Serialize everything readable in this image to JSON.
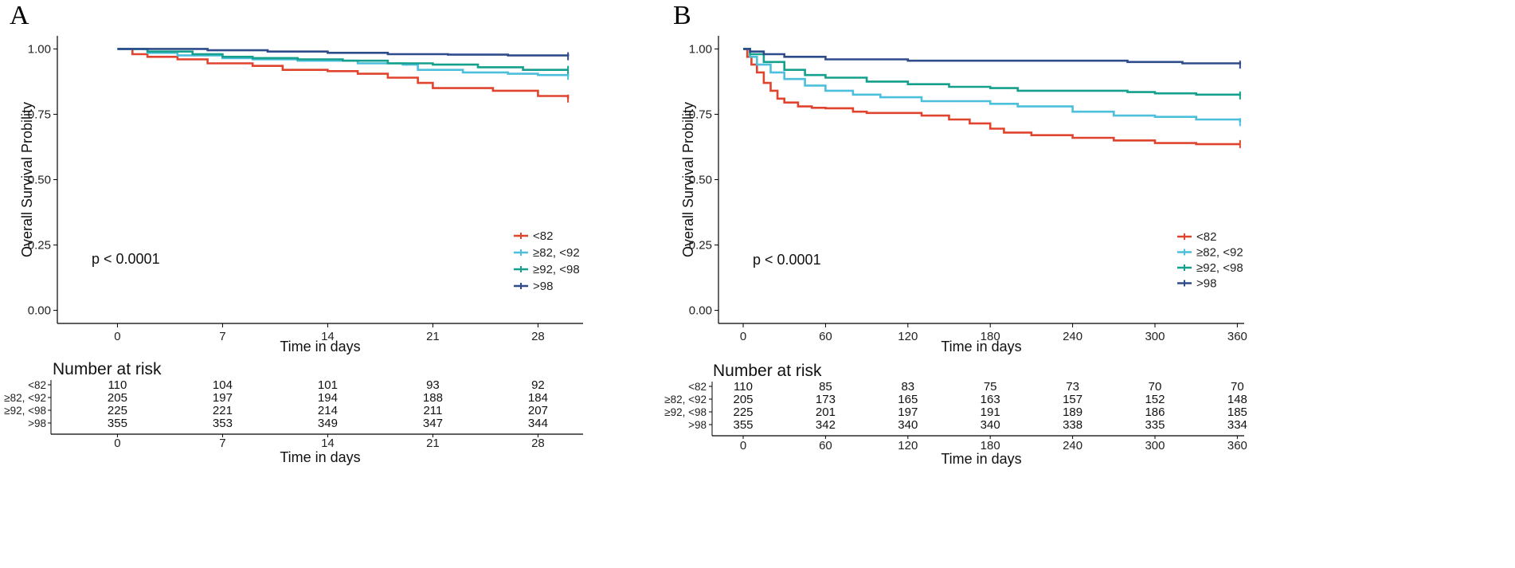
{
  "chart_data": [
    {
      "type": "line",
      "panel_label": "A",
      "title": "",
      "xlabel": "Time in days",
      "ylabel": "Overall Survival Probility",
      "xlim": [
        -4,
        31
      ],
      "ylim": [
        -0.05,
        1.05
      ],
      "x_ticks": [
        "0",
        "7",
        "14",
        "21",
        "28"
      ],
      "x_tick_values": [
        0,
        7,
        14,
        21,
        28
      ],
      "y_ticks": [
        "0.00",
        "0.25",
        "0.50",
        "0.75",
        "1.00"
      ],
      "y_tick_values": [
        0,
        0.25,
        0.5,
        0.75,
        1
      ],
      "grid": false,
      "p_value": "p < 0.0001",
      "legend_position": "right",
      "series": [
        {
          "name": "<82",
          "color": "#e0442e",
          "x": [
            0,
            1,
            2,
            4,
            6,
            9,
            11,
            14,
            16,
            18,
            20,
            21,
            25,
            28,
            30
          ],
          "y": [
            1.0,
            0.98,
            0.97,
            0.96,
            0.945,
            0.935,
            0.92,
            0.915,
            0.905,
            0.89,
            0.87,
            0.85,
            0.84,
            0.82,
            0.81
          ]
        },
        {
          "name": "≥82, <92",
          "color": "#4bbfdb",
          "x": [
            0,
            2,
            4,
            7,
            9,
            12,
            16,
            19,
            20,
            23,
            26,
            28,
            30
          ],
          "y": [
            1.0,
            0.985,
            0.975,
            0.965,
            0.96,
            0.955,
            0.945,
            0.94,
            0.92,
            0.91,
            0.905,
            0.9,
            0.897
          ]
        },
        {
          "name": "≥92, <98",
          "color": "#14a08c",
          "x": [
            0,
            2,
            5,
            7,
            9,
            12,
            15,
            18,
            21,
            24,
            27,
            30
          ],
          "y": [
            1.0,
            0.99,
            0.98,
            0.97,
            0.965,
            0.96,
            0.955,
            0.945,
            0.94,
            0.93,
            0.92,
            0.92
          ]
        },
        {
          "name": ">98",
          "color": "#2e4b8c",
          "x": [
            0,
            6,
            10,
            14,
            18,
            22,
            26,
            30
          ],
          "y": [
            1.0,
            0.995,
            0.99,
            0.985,
            0.98,
            0.978,
            0.975,
            0.972
          ]
        }
      ],
      "risk_table": {
        "title": "Number at risk",
        "xlabel": "Time in days",
        "rows": [
          {
            "label": "<82",
            "values": [
              "110",
              "104",
              "101",
              "93",
              "92"
            ]
          },
          {
            "label": "≥82, <92",
            "values": [
              "205",
              "197",
              "194",
              "188",
              "184"
            ]
          },
          {
            "label": "≥92, <98",
            "values": [
              "225",
              "221",
              "214",
              "211",
              "207"
            ]
          },
          {
            "label": ">98",
            "values": [
              "355",
              "353",
              "349",
              "347",
              "344"
            ]
          }
        ]
      }
    },
    {
      "type": "line",
      "panel_label": "B",
      "title": "",
      "xlabel": "Time in days",
      "ylabel": "Overall Survival Probility",
      "xlim": [
        -18,
        365
      ],
      "ylim": [
        -0.05,
        1.05
      ],
      "x_ticks": [
        "0",
        "60",
        "120",
        "180",
        "240",
        "300",
        "360"
      ],
      "x_tick_values": [
        0,
        60,
        120,
        180,
        240,
        300,
        360
      ],
      "y_ticks": [
        "0.00",
        "0.25",
        "0.50",
        "0.75",
        "1.00"
      ],
      "y_tick_values": [
        0,
        0.25,
        0.5,
        0.75,
        1
      ],
      "grid": false,
      "p_value": "p < 0.0001",
      "legend_position": "right",
      "series": [
        {
          "name": "<82",
          "color": "#e0442e",
          "x": [
            0,
            3,
            6,
            10,
            15,
            20,
            25,
            30,
            40,
            50,
            60,
            80,
            90,
            130,
            150,
            165,
            180,
            190,
            210,
            240,
            270,
            300,
            330,
            362
          ],
          "y": [
            1.0,
            0.97,
            0.94,
            0.91,
            0.87,
            0.84,
            0.81,
            0.795,
            0.78,
            0.775,
            0.773,
            0.76,
            0.755,
            0.745,
            0.73,
            0.715,
            0.695,
            0.68,
            0.67,
            0.66,
            0.65,
            0.64,
            0.636,
            0.636
          ]
        },
        {
          "name": "≥82, <92",
          "color": "#4bbfdb",
          "x": [
            0,
            5,
            10,
            20,
            30,
            45,
            60,
            80,
            100,
            130,
            180,
            200,
            240,
            270,
            300,
            330,
            362
          ],
          "y": [
            1.0,
            0.97,
            0.94,
            0.91,
            0.885,
            0.86,
            0.84,
            0.825,
            0.815,
            0.8,
            0.79,
            0.78,
            0.76,
            0.745,
            0.74,
            0.73,
            0.72
          ]
        },
        {
          "name": "≥92, <98",
          "color": "#14a08c",
          "x": [
            0,
            5,
            15,
            30,
            45,
            60,
            90,
            120,
            150,
            180,
            200,
            240,
            280,
            300,
            330,
            362
          ],
          "y": [
            1.0,
            0.98,
            0.95,
            0.92,
            0.9,
            0.89,
            0.875,
            0.865,
            0.855,
            0.85,
            0.84,
            0.84,
            0.835,
            0.83,
            0.825,
            0.822
          ]
        },
        {
          "name": ">98",
          "color": "#2e4b8c",
          "x": [
            0,
            5,
            15,
            30,
            60,
            120,
            180,
            240,
            280,
            320,
            362
          ],
          "y": [
            1.0,
            0.99,
            0.98,
            0.97,
            0.96,
            0.955,
            0.955,
            0.955,
            0.95,
            0.945,
            0.94
          ]
        }
      ],
      "risk_table": {
        "title": "Number at risk",
        "xlabel": "Time in days",
        "rows": [
          {
            "label": "<82",
            "values": [
              "110",
              "85",
              "83",
              "75",
              "73",
              "70",
              "70"
            ]
          },
          {
            "label": "≥82, <92",
            "values": [
              "205",
              "173",
              "165",
              "163",
              "157",
              "152",
              "148"
            ]
          },
          {
            "label": "≥92, <98",
            "values": [
              "225",
              "201",
              "197",
              "191",
              "189",
              "186",
              "185"
            ]
          },
          {
            "label": ">98",
            "values": [
              "355",
              "342",
              "340",
              "340",
              "338",
              "335",
              "334"
            ]
          }
        ]
      }
    }
  ]
}
